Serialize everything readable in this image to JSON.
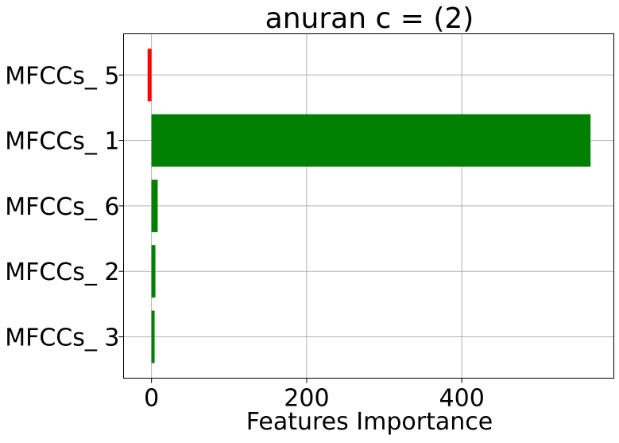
{
  "chart_data": {
    "type": "bar",
    "orientation": "horizontal",
    "title": "anuran c = (2)",
    "xlabel": "Features Importance",
    "ylabel": "",
    "categories": [
      "MFCCs_ 3",
      "MFCCs_ 2",
      "MFCCs_ 6",
      "MFCCs_ 1",
      "MFCCs_ 5"
    ],
    "values": [
      4,
      5,
      8,
      566,
      -5
    ],
    "bar_colors": [
      "#008000",
      "#008000",
      "#008000",
      "#008000",
      "#ff0000"
    ],
    "positive_color": "#008000",
    "negative_color": "#ff0000",
    "xlim": [
      -36,
      596
    ],
    "xticks": [
      0,
      200,
      400
    ],
    "xtick_labels": [
      "0",
      "200",
      "400"
    ],
    "grid": true
  }
}
